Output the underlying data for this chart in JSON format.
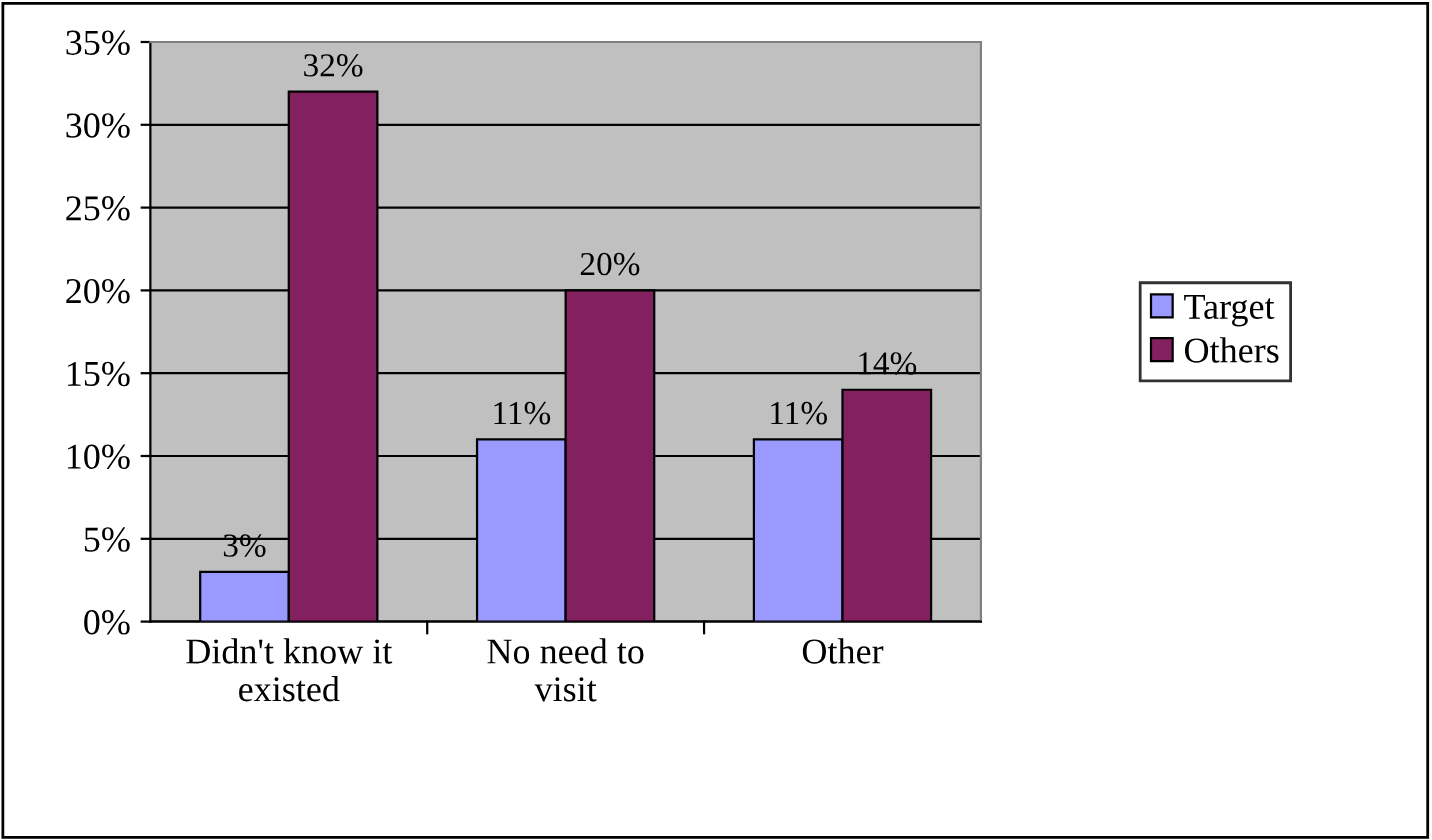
{
  "chart_data": {
    "type": "bar",
    "categories": [
      "Didn't know it\nexisted",
      "No need to\nvisit",
      "Other"
    ],
    "series": [
      {
        "name": "Target",
        "color": "#9999ff",
        "values": [
          3,
          11,
          11
        ],
        "value_labels": [
          "3%",
          "11%",
          "11%"
        ]
      },
      {
        "name": "Others",
        "color": "#832060",
        "values": [
          32,
          20,
          14
        ],
        "value_labels": [
          "32%",
          "20%",
          "14%"
        ]
      }
    ],
    "ylim": [
      0,
      35
    ],
    "yticks": [
      {
        "value": 0,
        "label": "0%"
      },
      {
        "value": 5,
        "label": "5%"
      },
      {
        "value": 10,
        "label": "10%"
      },
      {
        "value": 15,
        "label": "15%"
      },
      {
        "value": 20,
        "label": "20%"
      },
      {
        "value": 25,
        "label": "25%"
      },
      {
        "value": 30,
        "label": "30%"
      },
      {
        "value": 35,
        "label": "35%"
      }
    ],
    "grid": "y",
    "legend": "right"
  }
}
